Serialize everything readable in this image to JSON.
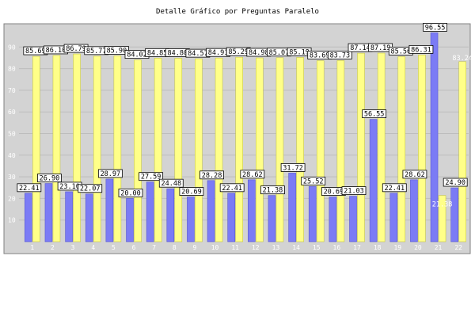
{
  "chart_data": {
    "type": "bar",
    "title": "Detalle Gráfico por Preguntas Paralelo",
    "xlabel": "",
    "ylabel": "",
    "ylim": [
      0,
      100
    ],
    "y_ticks": [
      10,
      20,
      30,
      40,
      50,
      60,
      70,
      80,
      90
    ],
    "grid": true,
    "categories": [
      "1",
      "2",
      "3",
      "4",
      "5",
      "6",
      "7",
      "8",
      "9",
      "10",
      "11",
      "12",
      "13",
      "14",
      "15",
      "16",
      "17",
      "18",
      "19",
      "20",
      "21",
      "22"
    ],
    "series": [
      {
        "color": "#7b7bf5",
        "values": [
          22.41,
          26.9,
          23.1,
          22.07,
          28.97,
          20.0,
          27.59,
          24.48,
          20.69,
          28.28,
          22.41,
          28.62,
          21.38,
          31.72,
          25.52,
          20.69,
          21.03,
          56.55,
          22.41,
          28.62,
          96.55,
          24.9
        ]
      },
      {
        "color": "#ffff88",
        "values": [
          85.69,
          86.1,
          86.79,
          85.77,
          85.9,
          84.02,
          84.85,
          84.8,
          84.57,
          84.91,
          85.29,
          84.98,
          85.07,
          85.19,
          83.69,
          83.73,
          87.14,
          87.19,
          85.56,
          86.31,
          21.38,
          83.24
        ]
      }
    ],
    "labels_s1": [
      "22.41",
      "26.90",
      "23.10",
      "22.07",
      "28.97",
      "20.00",
      "27.59",
      "24.48",
      "20.69",
      "28.28",
      "22.41",
      "28.62",
      "21.38",
      "31.72",
      "25.52",
      "20.69",
      "21.03",
      "56.55",
      "22.41",
      "28.62",
      "96.55",
      "24.90"
    ],
    "labels_s2": [
      "85.69",
      "86.10",
      "86.79",
      "85.77",
      "85.90",
      "84.02",
      "84.85",
      "84.80",
      "84.57",
      "84.91",
      "85.29",
      "84.98",
      "85.07",
      "85.19",
      "83.69",
      "83.73",
      "87.14",
      "87.19",
      "85.56",
      "86.31",
      "21.38",
      "83.24"
    ]
  }
}
